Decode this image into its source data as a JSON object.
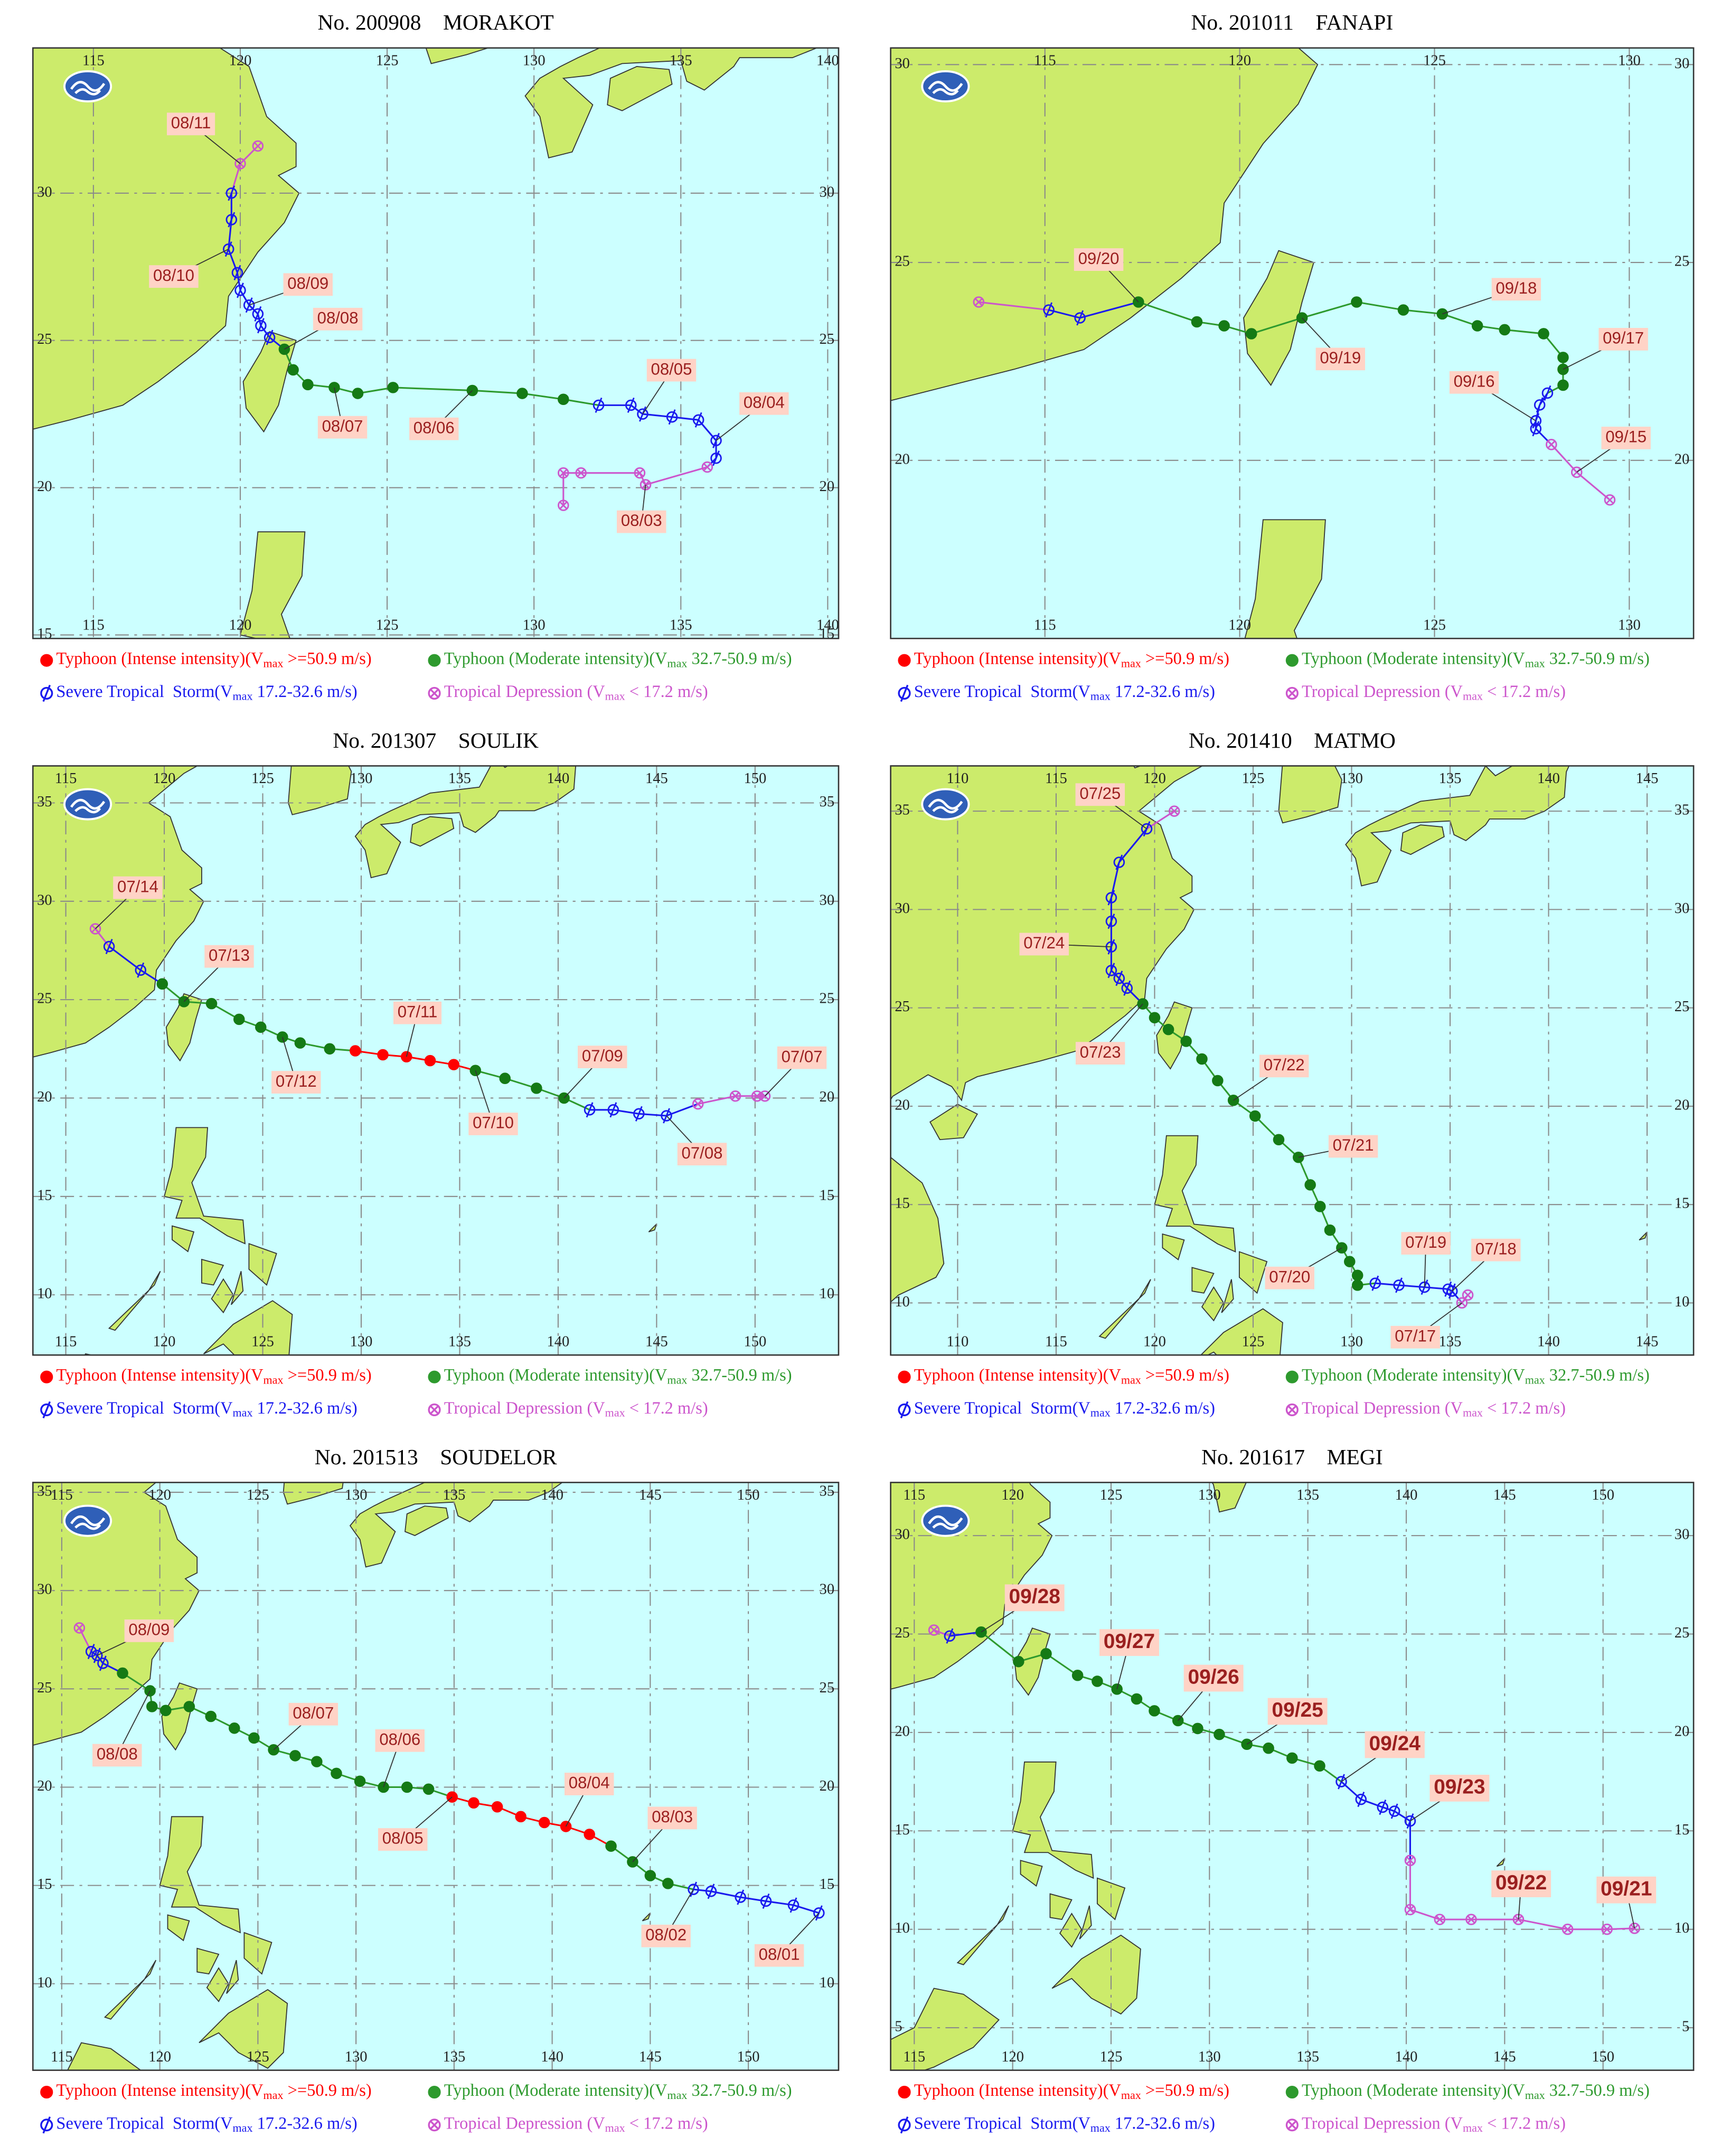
{
  "legend": [
    {
      "key": "I",
      "color": "#ff0000",
      "text": [
        "Typhoon (Intense intensity)(V",
        "max",
        " >=50.9 m/s)"
      ]
    },
    {
      "key": "M",
      "color": "#2e9a2e",
      "text": [
        "Typhoon (Moderate intensity)(V",
        "max",
        " 32.7-50.9 m/s)"
      ]
    },
    {
      "key": "S",
      "color": "#1a1aee",
      "text": [
        "Severe Tropical  Storm(V",
        "max",
        " 17.2-32.6 m/s)"
      ]
    },
    {
      "key": "D",
      "color": "#cc55cc",
      "text": [
        "Tropical Depression (V",
        "max",
        " < 17.2 m/s)"
      ]
    }
  ],
  "maps": [
    {
      "title": "No. 200908    MORAKOT",
      "xlim": [
        112.94,
        140.37
      ],
      "ylim": [
        14.88,
        34.93
      ],
      "xticks": [
        115,
        120,
        125,
        130,
        135,
        140
      ],
      "yticks": [
        15,
        20,
        25,
        30
      ],
      "lon": [
        131.0,
        131.0,
        131.6,
        133.6,
        133.8,
        135.9,
        136.2,
        136.2,
        135.6,
        134.7,
        133.7,
        133.3,
        132.2,
        131.0,
        129.6,
        127.9,
        125.2,
        124.0,
        123.2,
        122.3,
        121.8,
        121.5,
        121.0,
        120.7,
        120.6,
        120.3,
        120.0,
        119.9,
        119.6,
        119.7,
        119.7,
        120.0,
        120.6
      ],
      "lat": [
        19.4,
        20.5,
        20.5,
        20.5,
        20.1,
        20.7,
        21.0,
        21.6,
        22.3,
        22.4,
        22.5,
        22.8,
        22.8,
        23.0,
        23.2,
        23.3,
        23.4,
        23.2,
        23.4,
        23.5,
        24.0,
        24.7,
        25.1,
        25.5,
        25.9,
        26.2,
        26.7,
        27.3,
        28.1,
        29.1,
        30.0,
        31.0,
        31.6
      ],
      "class": "DDDDDDSSSSSSSMMMMMMMMMSSSSSSSSSDD",
      "labels": [
        null,
        null,
        null,
        null,
        "08/03",
        null,
        null,
        "08/04",
        null,
        null,
        "08/05",
        null,
        null,
        null,
        null,
        "08/06",
        null,
        null,
        "08/07",
        null,
        null,
        "08/08",
        null,
        null,
        null,
        "08/09",
        null,
        null,
        "08/10",
        null,
        null,
        "08/11",
        null
      ]
    },
    {
      "title": "No. 201011    FANAPI",
      "xlim": [
        111.04,
        131.65
      ],
      "ylim": [
        15.5,
        30.42
      ],
      "xticks": [
        115,
        120,
        125,
        130
      ],
      "yticks": [
        20,
        25,
        30
      ],
      "lon": [
        129.5,
        128.65,
        128.0,
        127.6,
        127.6,
        127.7,
        127.9,
        128.3,
        128.3,
        128.3,
        127.8,
        126.8,
        126.1,
        125.2,
        124.2,
        123.0,
        121.6,
        120.3,
        119.6,
        118.9,
        117.4,
        115.9,
        115.1,
        113.3
      ],
      "lat": [
        19.0,
        19.7,
        20.4,
        20.8,
        21.0,
        21.4,
        21.7,
        21.9,
        22.3,
        22.6,
        23.2,
        23.3,
        23.4,
        23.7,
        23.8,
        24.0,
        23.6,
        23.2,
        23.4,
        23.5,
        24.0,
        23.6,
        23.8,
        24.0
      ],
      "class": "DDDSSSSMMMMMMMMMMMMMMSSD",
      "labels": [
        null,
        "09/15",
        null,
        null,
        "09/16",
        null,
        null,
        null,
        "09/17",
        null,
        null,
        null,
        null,
        "09/18",
        null,
        null,
        "09/19",
        null,
        null,
        null,
        "09/20",
        null,
        null,
        null
      ]
    },
    {
      "title": "No. 201307    SOULIK",
      "xlim": [
        113.33,
        154.24
      ],
      "ylim": [
        6.94,
        36.88
      ],
      "xticks": [
        115,
        120,
        125,
        130,
        135,
        140,
        145,
        150
      ],
      "yticks": [
        10,
        15,
        20,
        25,
        30,
        35
      ],
      "lon": [
        150.5,
        150.1,
        149.0,
        147.1,
        145.5,
        144.1,
        142.8,
        141.6,
        140.3,
        138.9,
        137.3,
        135.8,
        134.7,
        133.5,
        132.3,
        131.1,
        129.7,
        128.4,
        126.9,
        126.0,
        124.9,
        123.8,
        122.4,
        121.0,
        119.9,
        118.8,
        117.2,
        116.5
      ],
      "lat": [
        20.1,
        20.1,
        20.1,
        19.7,
        19.1,
        19.2,
        19.4,
        19.4,
        20.0,
        20.5,
        21.0,
        21.4,
        21.7,
        21.9,
        22.1,
        22.2,
        22.4,
        22.5,
        22.8,
        23.1,
        23.6,
        24.0,
        24.8,
        24.9,
        25.8,
        26.5,
        27.7,
        28.6
      ],
      "class": "DDDDSSSSMMMMIIIIIMMMMMMMMSSD",
      "labels": [
        "07/07",
        null,
        null,
        null,
        "07/08",
        null,
        null,
        null,
        "07/09",
        null,
        null,
        "07/10",
        null,
        null,
        "07/11",
        null,
        null,
        null,
        null,
        "07/12",
        null,
        null,
        null,
        "07/13",
        null,
        null,
        null,
        "07/14"
      ]
    },
    {
      "title": "No. 201410    MATMO",
      "xlim": [
        106.6,
        147.36
      ],
      "ylim": [
        7.35,
        37.3
      ],
      "xticks": [
        110,
        115,
        120,
        125,
        130,
        135,
        140,
        145
      ],
      "yticks": [
        10,
        15,
        20,
        25,
        30,
        35
      ],
      "lon": [
        135.9,
        135.6,
        135.1,
        134.9,
        133.7,
        132.4,
        131.2,
        130.3,
        130.3,
        129.9,
        129.5,
        128.9,
        128.4,
        127.9,
        127.3,
        126.3,
        125.1,
        124.0,
        123.2,
        122.4,
        121.6,
        120.7,
        120.0,
        119.4,
        118.6,
        118.2,
        117.8,
        117.8,
        117.8,
        117.8,
        118.2,
        119.6,
        121.0
      ],
      "lat": [
        10.4,
        10.0,
        10.6,
        10.7,
        10.8,
        10.9,
        11.0,
        10.9,
        11.4,
        12.1,
        12.8,
        13.7,
        14.9,
        16.0,
        17.4,
        18.3,
        19.5,
        20.3,
        21.3,
        22.4,
        23.3,
        23.9,
        24.5,
        25.2,
        26.0,
        26.5,
        26.9,
        28.1,
        29.4,
        30.6,
        32.4,
        34.1,
        35.0
      ],
      "class": "DDSSSSSMMMMMMMMMMMMMMMMMSSSSSSSSD",
      "labels": [
        null,
        "07/17",
        "07/18",
        null,
        "07/19",
        null,
        null,
        null,
        null,
        null,
        "07/20",
        null,
        null,
        null,
        "07/21",
        null,
        null,
        "07/22",
        null,
        null,
        null,
        null,
        null,
        "07/23",
        null,
        null,
        null,
        "07/24",
        null,
        null,
        null,
        "07/25",
        null
      ]
    },
    {
      "title": "No. 201513    SOUDELOR",
      "xlim": [
        113.53,
        154.6
      ],
      "ylim": [
        5.6,
        35.5
      ],
      "xticks": [
        115,
        120,
        125,
        130,
        135,
        140,
        145,
        150
      ],
      "yticks": [
        10,
        15,
        20,
        25,
        30,
        35
      ],
      "lon": [
        153.6,
        152.3,
        150.9,
        149.6,
        148.1,
        147.2,
        145.9,
        145.0,
        144.1,
        143.0,
        141.9,
        140.7,
        139.6,
        138.4,
        137.2,
        136.0,
        134.9,
        133.7,
        132.6,
        131.4,
        130.2,
        129.0,
        128.0,
        126.9,
        125.8,
        124.8,
        123.8,
        122.6,
        121.5,
        120.3,
        119.6,
        119.5,
        118.1,
        117.1,
        116.8,
        116.5,
        115.9
      ],
      "lat": [
        13.6,
        14.0,
        14.2,
        14.4,
        14.7,
        14.8,
        15.1,
        15.5,
        16.2,
        17.0,
        17.6,
        18.0,
        18.2,
        18.5,
        19.0,
        19.2,
        19.5,
        19.9,
        20.0,
        20.0,
        20.3,
        20.7,
        21.3,
        21.6,
        21.9,
        22.5,
        23.0,
        23.6,
        24.1,
        23.9,
        24.1,
        24.9,
        25.8,
        26.3,
        26.7,
        26.9,
        28.1
      ],
      "class": "SSSSSSMMMMIIIIIIIMMMMMMMMMMMMMMMMSSSD",
      "labels": [
        "08/01",
        null,
        null,
        null,
        null,
        "08/02",
        null,
        null,
        "08/03",
        null,
        null,
        "08/04",
        null,
        null,
        null,
        null,
        "08/05",
        null,
        null,
        "08/06",
        null,
        null,
        null,
        null,
        "08/07",
        null,
        null,
        null,
        null,
        null,
        null,
        "08/08",
        null,
        null,
        "08/09",
        null,
        null
      ]
    },
    {
      "title": "No. 201617    MEGI",
      "xlim": [
        113.8,
        154.6
      ],
      "ylim": [
        2.84,
        32.7
      ],
      "xticks": [
        115,
        120,
        125,
        130,
        135,
        140,
        145,
        150
      ],
      "yticks": [
        5,
        10,
        15,
        20,
        25,
        30
      ],
      "lon": [
        151.6,
        150.2,
        148.2,
        145.7,
        143.3,
        141.7,
        140.2,
        140.2,
        140.2,
        139.4,
        138.8,
        137.7,
        136.7,
        135.6,
        134.2,
        133.0,
        131.9,
        130.5,
        129.4,
        128.4,
        127.2,
        126.3,
        125.3,
        124.3,
        123.3,
        121.7,
        120.3,
        118.4,
        116.8,
        116.0
      ],
      "lat": [
        10.05,
        10.0,
        10.0,
        10.5,
        10.5,
        10.5,
        11.0,
        13.5,
        15.5,
        16.0,
        16.2,
        16.6,
        17.5,
        18.3,
        18.7,
        19.2,
        19.4,
        19.9,
        20.2,
        20.6,
        21.1,
        21.7,
        22.2,
        22.6,
        22.9,
        24.0,
        23.6,
        25.1,
        24.9,
        25.2
      ],
      "class": "DDDDDDDDSSSSSMMMMMMMMMMMMMMMSD",
      "labels": [
        "09/21",
        null,
        null,
        "09/22",
        null,
        null,
        null,
        null,
        "09/23",
        null,
        null,
        null,
        "09/24",
        null,
        null,
        null,
        "09/25",
        null,
        null,
        "09/26",
        null,
        null,
        "09/27",
        null,
        null,
        null,
        null,
        "09/28",
        null,
        null
      ]
    }
  ]
}
